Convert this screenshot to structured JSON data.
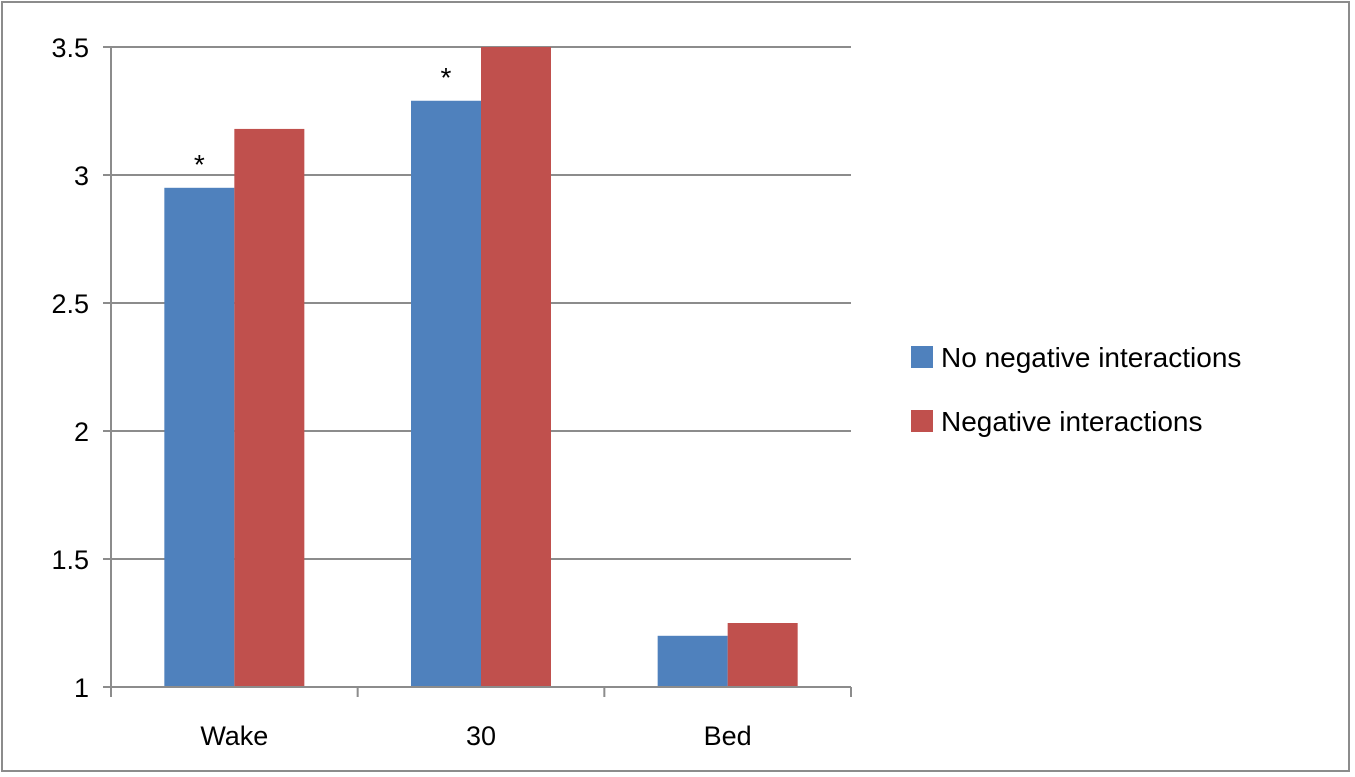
{
  "chart_data": {
    "type": "bar",
    "categories": [
      "Wake",
      "30",
      "Bed"
    ],
    "series": [
      {
        "name": "No negative interactions",
        "color": "#4f81bd",
        "values": [
          2.95,
          3.29,
          1.2
        ]
      },
      {
        "name": "Negative interactions",
        "color": "#c0504d",
        "values": [
          3.18,
          3.5,
          1.25
        ]
      }
    ],
    "ylim": [
      1,
      3.5
    ],
    "yticks": [
      "1",
      "1.5",
      "2",
      "2.5",
      "3",
      "3.5"
    ],
    "ytick_values": [
      1,
      1.5,
      2,
      2.5,
      3,
      3.5
    ],
    "grid": true,
    "legend_position": "right",
    "annotations": [
      {
        "category": "Wake",
        "text": "*"
      },
      {
        "category": "30",
        "text": "*"
      }
    ],
    "title": "",
    "xlabel": "",
    "ylabel": ""
  }
}
